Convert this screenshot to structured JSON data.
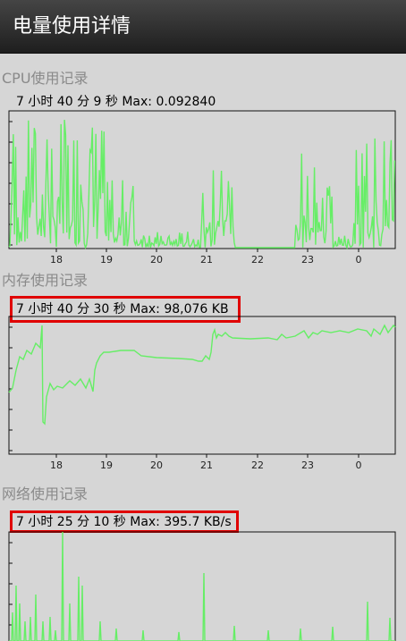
{
  "header": {
    "title": "电量使用详情"
  },
  "sections": [
    {
      "title": "CPU使用记录",
      "stat": "7 小时 40 分 9 秒 Max: 0.092840",
      "highlighted": false,
      "ticks": [
        "18",
        "19",
        "20",
        "21",
        "22",
        "23",
        "0"
      ]
    },
    {
      "title": "内存使用记录",
      "stat": "7 小时 40 分 30 秒 Max: 98,076 KB",
      "highlighted": true,
      "ticks": [
        "18",
        "19",
        "20",
        "21",
        "22",
        "23",
        "0"
      ]
    },
    {
      "title": "网络使用记录",
      "stat": "7 小时 25 分 10 秒 Max: 395.7 KB/s",
      "highlighted": true,
      "ticks": []
    }
  ],
  "colors": {
    "line": "#66ee66",
    "highlight": "#e00000",
    "header": "#2a2a2a"
  }
}
